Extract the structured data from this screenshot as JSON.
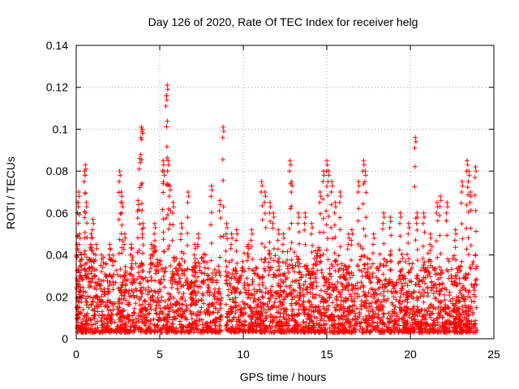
{
  "chart_data": {
    "type": "scatter",
    "title": "Day 126 of 2020, Rate Of TEC Index for receiver helg",
    "xlabel": "GPS time / hours",
    "ylabel": "ROTI / TECUs",
    "xlim": [
      0,
      25
    ],
    "ylim": [
      0,
      0.14
    ],
    "xticks": [
      0,
      5,
      10,
      15,
      20,
      25
    ],
    "xtick_labels": [
      "0",
      "5",
      "10",
      "15",
      "20",
      "25"
    ],
    "yticks": [
      0,
      0.02,
      0.04,
      0.06,
      0.08,
      0.1,
      0.12,
      0.14
    ],
    "ytick_labels": [
      "0",
      "0.02",
      "0.04",
      "0.06",
      "0.08",
      "0.1",
      "0.12",
      "0.14"
    ],
    "grid": true,
    "marker": "+",
    "color": "#ff0000",
    "series": [
      {
        "name": "ROTI",
        "x": [
          0.05,
          0.1,
          0.15,
          0.2,
          0.3,
          0.5,
          0.55,
          0.6,
          0.9,
          1.0,
          1.2,
          1.5,
          2.0,
          2.6,
          2.7,
          2.75,
          2.9,
          3.3,
          3.7,
          3.8,
          3.9,
          3.95,
          4.0,
          4.5,
          4.7,
          5.2,
          5.25,
          5.4,
          5.45,
          5.5,
          5.6,
          5.8,
          6.3,
          6.7,
          7.1,
          7.3,
          8.1,
          8.6,
          8.8,
          9.0,
          9.3,
          9.6,
          10.3,
          10.5,
          11.1,
          11.3,
          11.6,
          11.8,
          12.1,
          12.4,
          12.8,
          12.9,
          13.3,
          13.7,
          14.1,
          14.6,
          14.8,
          15.0,
          15.1,
          15.3,
          15.5,
          15.8,
          16.3,
          16.5,
          16.9,
          17.2,
          17.3,
          17.8,
          18.4,
          18.8,
          19.4,
          19.9,
          20.3,
          20.4,
          20.8,
          21.2,
          21.6,
          21.8,
          22.2,
          22.7,
          23.1,
          23.4,
          23.5,
          23.6,
          23.9
        ],
        "y": [
          0.045,
          0.065,
          0.07,
          0.05,
          0.04,
          0.08,
          0.083,
          0.065,
          0.05,
          0.057,
          0.045,
          0.04,
          0.045,
          0.08,
          0.07,
          0.065,
          0.05,
          0.045,
          0.066,
          0.086,
          0.101,
          0.1,
          0.055,
          0.045,
          0.055,
          0.085,
          0.08,
          0.116,
          0.121,
          0.085,
          0.073,
          0.065,
          0.055,
          0.07,
          0.045,
          0.05,
          0.073,
          0.066,
          0.101,
          0.055,
          0.05,
          0.052,
          0.045,
          0.052,
          0.075,
          0.07,
          0.065,
          0.06,
          0.052,
          0.05,
          0.085,
          0.075,
          0.06,
          0.06,
          0.055,
          0.07,
          0.08,
          0.085,
          0.08,
          0.075,
          0.065,
          0.07,
          0.05,
          0.052,
          0.075,
          0.085,
          0.08,
          0.05,
          0.06,
          0.058,
          0.06,
          0.055,
          0.096,
          0.06,
          0.06,
          0.05,
          0.065,
          0.068,
          0.065,
          0.052,
          0.075,
          0.085,
          0.08,
          0.07,
          0.082
        ]
      }
    ],
    "dense_band": {
      "description": "dense background cloud of ROTI values",
      "y_range": [
        0.003,
        0.045
      ],
      "x_range": [
        0,
        24
      ]
    }
  }
}
